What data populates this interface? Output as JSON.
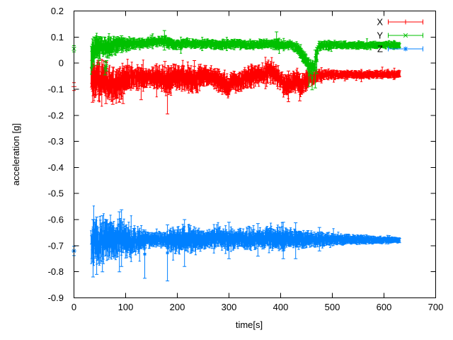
{
  "window": {
    "background": "#ffffff"
  },
  "chart_data": {
    "type": "scatter",
    "style": "errorbars",
    "title": "",
    "xlabel": "time[s]",
    "ylabel": "acceleration [g]",
    "xlim": [
      0,
      700
    ],
    "ylim": [
      -0.9,
      0.2
    ],
    "xtick_values": [
      0,
      100,
      200,
      300,
      400,
      500,
      600,
      700
    ],
    "xtick_labels": [
      "0",
      "100",
      "200",
      "300",
      "400",
      "500",
      "600",
      "700"
    ],
    "ytick_values": [
      0.2,
      0.1,
      0,
      -0.1,
      -0.2,
      -0.3,
      -0.4,
      -0.5,
      -0.6,
      -0.7,
      -0.8,
      -0.9
    ],
    "ytick_labels": [
      "0.2",
      "0.1",
      "0",
      "-0.1",
      "-0.2",
      "-0.3",
      "-0.4",
      "-0.5",
      "-0.6",
      "-0.7",
      "-0.8",
      "-0.9"
    ],
    "grid": false,
    "legend_position": "top-right",
    "axis_color": "#000000",
    "text_color": "#000000",
    "series": [
      {
        "name": "X",
        "color": "#ff0000",
        "marker": "plus",
        "start_point": {
          "t": 0,
          "value": -0.09,
          "err": 0.015
        },
        "band": [
          [
            33,
            -0.05,
            0.05
          ],
          [
            38,
            -0.065,
            0.055
          ],
          [
            45,
            -0.06,
            0.05
          ],
          [
            52,
            -0.07,
            0.05
          ],
          [
            60,
            -0.06,
            0.045
          ],
          [
            70,
            -0.082,
            0.05
          ],
          [
            80,
            -0.078,
            0.048
          ],
          [
            90,
            -0.07,
            0.045
          ],
          [
            100,
            -0.058,
            0.038
          ],
          [
            115,
            -0.05,
            0.032
          ],
          [
            130,
            -0.058,
            0.028
          ],
          [
            145,
            -0.055,
            0.025
          ],
          [
            158,
            -0.052,
            0.03
          ],
          [
            170,
            -0.06,
            0.035
          ],
          [
            180,
            -0.072,
            0.042
          ],
          [
            192,
            -0.058,
            0.035
          ],
          [
            205,
            -0.052,
            0.032
          ],
          [
            220,
            -0.058,
            0.035
          ],
          [
            232,
            -0.065,
            0.04
          ],
          [
            245,
            -0.052,
            0.03
          ],
          [
            262,
            -0.05,
            0.026
          ],
          [
            278,
            -0.06,
            0.03
          ],
          [
            290,
            -0.08,
            0.032
          ],
          [
            300,
            -0.088,
            0.028
          ],
          [
            308,
            -0.06,
            0.026
          ],
          [
            316,
            -0.082,
            0.028
          ],
          [
            326,
            -0.062,
            0.028
          ],
          [
            340,
            -0.052,
            0.028
          ],
          [
            355,
            -0.048,
            0.028
          ],
          [
            368,
            -0.04,
            0.028
          ],
          [
            378,
            -0.028,
            0.028
          ],
          [
            388,
            -0.045,
            0.028
          ],
          [
            398,
            -0.06,
            0.03
          ],
          [
            408,
            -0.082,
            0.032
          ],
          [
            416,
            -0.09,
            0.03
          ],
          [
            424,
            -0.072,
            0.028
          ],
          [
            432,
            -0.062,
            0.028
          ],
          [
            440,
            -0.088,
            0.032
          ],
          [
            448,
            -0.07,
            0.028
          ],
          [
            458,
            -0.055,
            0.022
          ],
          [
            468,
            -0.05,
            0.018
          ],
          [
            480,
            -0.046,
            0.014
          ],
          [
            500,
            -0.044,
            0.012
          ],
          [
            530,
            -0.043,
            0.011
          ],
          [
            560,
            -0.045,
            0.011
          ],
          [
            590,
            -0.042,
            0.01
          ],
          [
            615,
            -0.043,
            0.01
          ],
          [
            631,
            -0.043,
            0.01
          ]
        ],
        "outliers": [
          [
            36,
            -0.15,
            -0.01
          ],
          [
            48,
            -0.145,
            -0.005
          ],
          [
            62,
            -0.155,
            -0.02
          ],
          [
            75,
            -0.158,
            -0.015
          ],
          [
            88,
            -0.15,
            -0.02
          ],
          [
            95,
            -0.155,
            -0.03
          ],
          [
            130,
            -0.14,
            -0.02
          ],
          [
            176,
            -0.04,
            0.007
          ],
          [
            181,
            -0.195,
            -0.03
          ],
          [
            233,
            -0.035,
            0.01
          ],
          [
            374,
            -0.05,
            0.005
          ],
          [
            415,
            -0.148,
            -0.03
          ],
          [
            437,
            -0.145,
            -0.04
          ]
        ]
      },
      {
        "name": "Y",
        "color": "#00c000",
        "marker": "cross",
        "start_point": {
          "t": 0,
          "value": 0.055,
          "err": 0.012
        },
        "band": [
          [
            33,
            0.03,
            0.045
          ],
          [
            38,
            0.05,
            0.04
          ],
          [
            45,
            0.055,
            0.035
          ],
          [
            55,
            0.06,
            0.03
          ],
          [
            70,
            0.065,
            0.025
          ],
          [
            85,
            0.07,
            0.022
          ],
          [
            100,
            0.073,
            0.018
          ],
          [
            120,
            0.075,
            0.015
          ],
          [
            140,
            0.078,
            0.014
          ],
          [
            160,
            0.083,
            0.013
          ],
          [
            175,
            0.085,
            0.014
          ],
          [
            190,
            0.075,
            0.015
          ],
          [
            205,
            0.07,
            0.014
          ],
          [
            220,
            0.077,
            0.013
          ],
          [
            235,
            0.072,
            0.013
          ],
          [
            255,
            0.075,
            0.012
          ],
          [
            275,
            0.07,
            0.012
          ],
          [
            295,
            0.073,
            0.013
          ],
          [
            315,
            0.075,
            0.012
          ],
          [
            335,
            0.07,
            0.012
          ],
          [
            355,
            0.072,
            0.012
          ],
          [
            375,
            0.074,
            0.013
          ],
          [
            395,
            0.071,
            0.013
          ],
          [
            410,
            0.07,
            0.012
          ],
          [
            425,
            0.066,
            0.013
          ],
          [
            435,
            0.055,
            0.016
          ],
          [
            443,
            0.03,
            0.02
          ],
          [
            450,
            0.005,
            0.02
          ],
          [
            458,
            -0.012,
            0.018
          ],
          [
            465,
            -0.015,
            0.018
          ],
          [
            469,
            0.02,
            0.025
          ],
          [
            473,
            0.062,
            0.014
          ],
          [
            480,
            0.068,
            0.012
          ],
          [
            500,
            0.07,
            0.011
          ],
          [
            530,
            0.069,
            0.01
          ],
          [
            560,
            0.068,
            0.01
          ],
          [
            590,
            0.07,
            0.009
          ],
          [
            615,
            0.069,
            0.009
          ],
          [
            631,
            0.068,
            0.009
          ]
        ],
        "outliers": [
          [
            47,
            -0.005,
            0.09
          ],
          [
            60,
            -0.045,
            0.005
          ],
          [
            63,
            -0.03,
            0.01
          ],
          [
            92,
            0.04,
            0.105
          ],
          [
            150,
            0.06,
            0.107
          ],
          [
            175,
            0.05,
            0.125
          ],
          [
            392,
            0.055,
            0.12
          ],
          [
            455,
            -0.09,
            0.0
          ],
          [
            461,
            -0.102,
            -0.01
          ],
          [
            467,
            -0.095,
            0.05
          ],
          [
            470,
            -0.04,
            0.06
          ]
        ]
      },
      {
        "name": "Z",
        "color": "#0080ff",
        "marker": "star",
        "start_point": {
          "t": 0,
          "value": -0.72,
          "err": 0.018
        },
        "band": [
          [
            33,
            -0.69,
            0.05
          ],
          [
            40,
            -0.68,
            0.06
          ],
          [
            50,
            -0.685,
            0.058
          ],
          [
            62,
            -0.678,
            0.056
          ],
          [
            75,
            -0.672,
            0.054
          ],
          [
            88,
            -0.67,
            0.05
          ],
          [
            100,
            -0.676,
            0.045
          ],
          [
            115,
            -0.68,
            0.038
          ],
          [
            130,
            -0.68,
            0.028
          ],
          [
            145,
            -0.677,
            0.022
          ],
          [
            160,
            -0.675,
            0.019
          ],
          [
            175,
            -0.676,
            0.022
          ],
          [
            188,
            -0.68,
            0.03
          ],
          [
            200,
            -0.676,
            0.034
          ],
          [
            215,
            -0.674,
            0.035
          ],
          [
            230,
            -0.676,
            0.032
          ],
          [
            245,
            -0.675,
            0.028
          ],
          [
            260,
            -0.676,
            0.025
          ],
          [
            275,
            -0.67,
            0.025
          ],
          [
            290,
            -0.674,
            0.028
          ],
          [
            305,
            -0.675,
            0.028
          ],
          [
            320,
            -0.67,
            0.025
          ],
          [
            335,
            -0.674,
            0.028
          ],
          [
            350,
            -0.676,
            0.026
          ],
          [
            365,
            -0.673,
            0.025
          ],
          [
            380,
            -0.67,
            0.028
          ],
          [
            395,
            -0.674,
            0.03
          ],
          [
            410,
            -0.676,
            0.028
          ],
          [
            425,
            -0.674,
            0.026
          ],
          [
            440,
            -0.675,
            0.024
          ],
          [
            455,
            -0.675,
            0.021
          ],
          [
            470,
            -0.676,
            0.019
          ],
          [
            485,
            -0.675,
            0.017
          ],
          [
            505,
            -0.675,
            0.015
          ],
          [
            525,
            -0.676,
            0.013
          ],
          [
            545,
            -0.676,
            0.012
          ],
          [
            565,
            -0.677,
            0.011
          ],
          [
            585,
            -0.678,
            0.01
          ],
          [
            605,
            -0.678,
            0.009
          ],
          [
            620,
            -0.678,
            0.008
          ],
          [
            631,
            -0.678,
            0.008
          ]
        ],
        "outliers": [
          [
            37,
            -0.82,
            -0.6
          ],
          [
            44,
            -0.81,
            -0.59
          ],
          [
            55,
            -0.8,
            -0.585
          ],
          [
            88,
            -0.8,
            -0.57
          ],
          [
            92,
            -0.78,
            -0.562
          ],
          [
            137,
            -0.825,
            -0.64
          ],
          [
            181,
            -0.835,
            -0.62
          ],
          [
            214,
            -0.78,
            -0.6
          ],
          [
            300,
            -0.75,
            -0.61
          ],
          [
            356,
            -0.74,
            -0.615
          ],
          [
            405,
            -0.75,
            -0.61
          ],
          [
            429,
            -0.75,
            -0.612
          ],
          [
            475,
            -0.72,
            -0.63
          ]
        ]
      }
    ]
  }
}
